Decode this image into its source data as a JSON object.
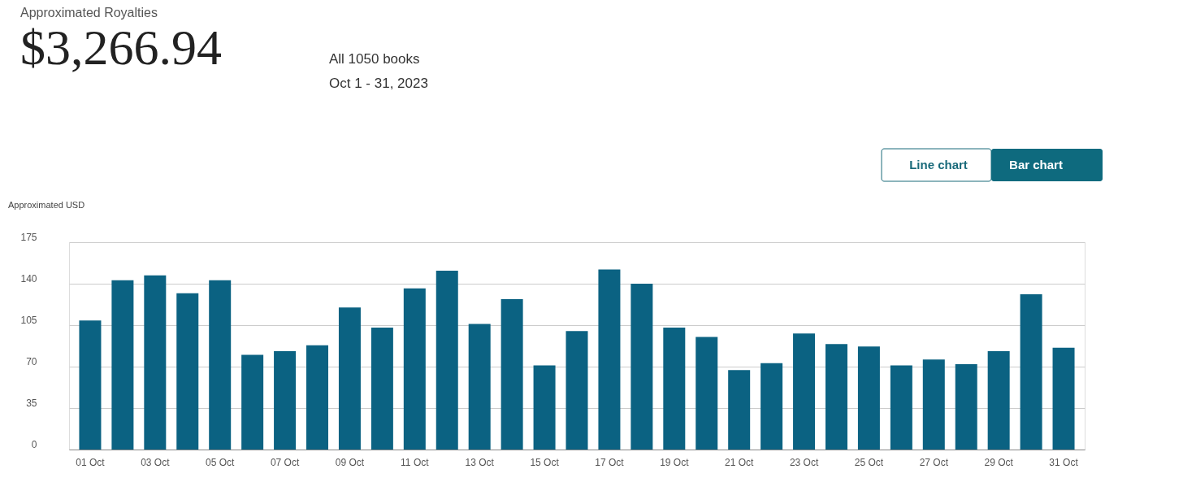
{
  "chart_data": {
    "type": "bar",
    "title": "Approximated Royalties",
    "subtitle": "$3,266.94",
    "ylabel": "Approximated USD",
    "annotations": [
      "All 1050 books",
      "Oct 1 - 31, 2023",
      "Line chart",
      "Bar chart"
    ],
    "categories": [
      "01 Oct",
      null,
      "03 Oct",
      null,
      "05 Oct",
      null,
      "07 Oct",
      null,
      "09 Oct",
      null,
      "11 Oct",
      null,
      "13 Oct",
      null,
      "15 Oct",
      null,
      "17 Oct",
      null,
      "19 Oct",
      null,
      "21 Oct",
      null,
      "23 Oct",
      null,
      "25 Oct",
      null,
      "27 Oct",
      null,
      "29 Oct",
      null,
      "31 Oct"
    ],
    "values": [
      109,
      143,
      147,
      132,
      143,
      80,
      83,
      88,
      120,
      103,
      136,
      151,
      106,
      127,
      71,
      100,
      152,
      140,
      103,
      95,
      67,
      73,
      98,
      89,
      87,
      71,
      76,
      72,
      83,
      131,
      86
    ],
    "color": "#0b6282",
    "ylim": [
      0,
      175
    ],
    "yticks": [
      0,
      35,
      70,
      105,
      140,
      175
    ],
    "grid": "y"
  }
}
